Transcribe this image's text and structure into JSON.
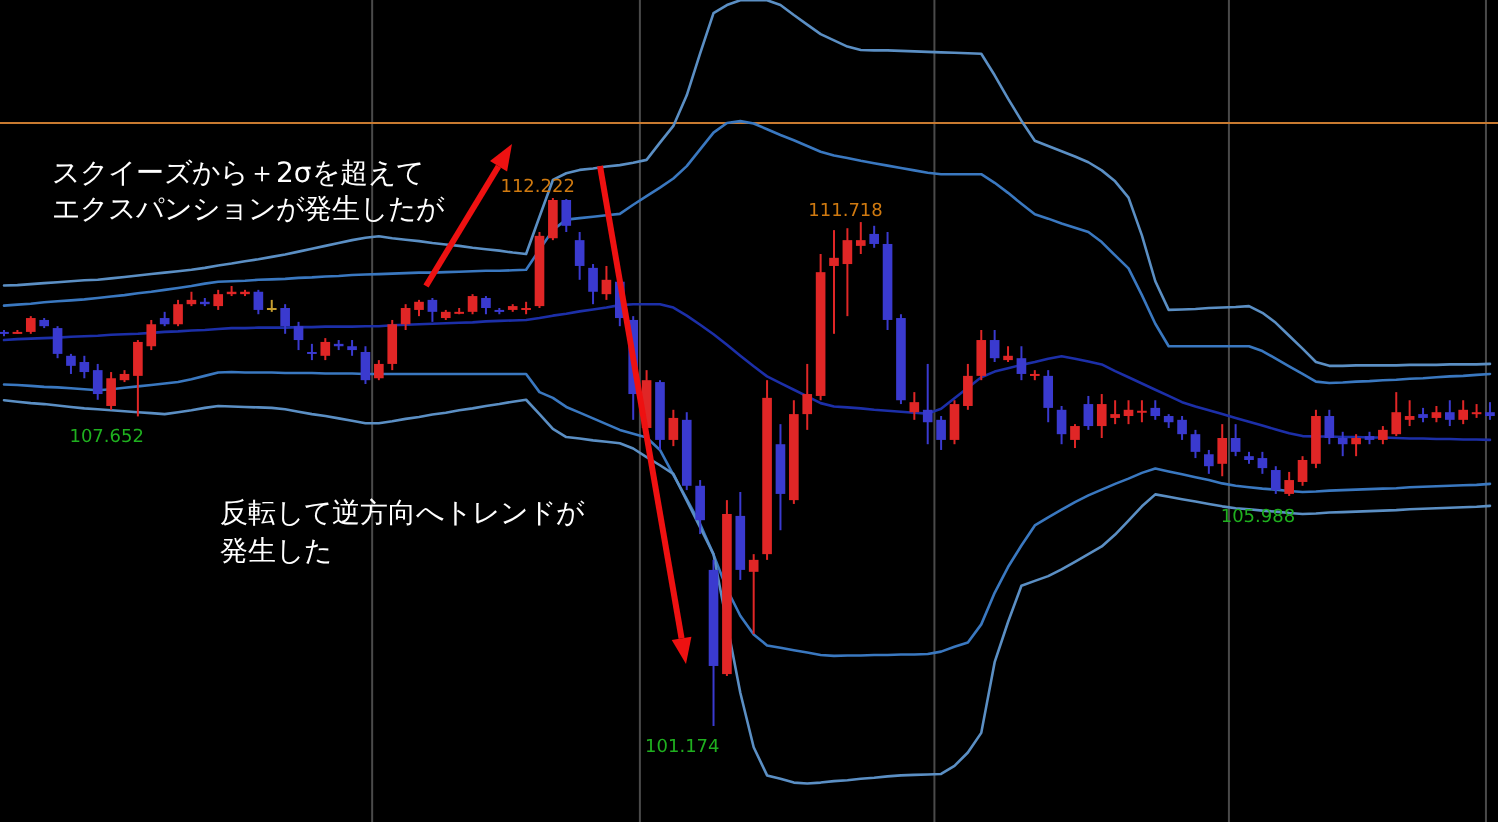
{
  "chart_data": {
    "type": "candlestick",
    "categories": [
      null,
      null,
      null,
      null,
      null,
      null,
      null,
      null,
      null,
      null,
      null,
      null,
      null,
      null,
      null,
      null,
      null,
      null,
      null,
      null,
      null,
      null,
      null,
      null,
      null,
      null,
      null,
      null,
      null,
      null,
      null,
      null,
      null,
      null,
      null,
      null,
      null,
      null,
      null,
      null,
      null,
      null,
      null,
      null,
      null,
      null,
      null,
      null,
      null,
      null,
      null,
      null,
      null,
      null,
      null,
      null,
      null,
      null,
      null,
      null,
      null,
      null,
      null,
      null,
      null,
      null,
      null,
      null,
      null,
      null,
      null,
      null,
      null,
      null,
      null,
      null,
      null,
      null,
      null,
      null,
      null,
      null,
      null,
      null,
      null,
      null,
      null,
      null,
      null,
      null,
      null,
      null,
      null,
      null,
      null,
      null,
      null,
      null,
      null,
      null,
      null,
      null,
      null,
      null,
      null,
      null,
      null,
      null,
      null,
      null,
      null,
      null
    ],
    "ohlc": [
      [
        109.42,
        109.46,
        109.33,
        109.38
      ],
      [
        109.4,
        109.46,
        109.38,
        109.42
      ],
      [
        109.42,
        109.75,
        109.38,
        109.71
      ],
      [
        109.67,
        109.71,
        109.5,
        109.54
      ],
      [
        109.5,
        109.54,
        108.87,
        108.96
      ],
      [
        108.92,
        108.96,
        108.54,
        108.71
      ],
      [
        108.79,
        108.92,
        108.45,
        108.58
      ],
      [
        108.62,
        108.75,
        108.0,
        108.12
      ],
      [
        107.87,
        108.58,
        107.79,
        108.45
      ],
      [
        108.41,
        108.62,
        108.37,
        108.54
      ],
      [
        108.5,
        109.25,
        107.652,
        109.21
      ],
      [
        109.12,
        109.67,
        109.04,
        109.58
      ],
      [
        109.71,
        109.84,
        109.54,
        109.58
      ],
      [
        109.58,
        110.09,
        109.54,
        110.0
      ],
      [
        110.0,
        110.26,
        109.96,
        110.09
      ],
      [
        110.05,
        110.13,
        109.96,
        110.0
      ],
      [
        109.96,
        110.3,
        109.88,
        110.21
      ],
      [
        110.21,
        110.38,
        110.17,
        110.26
      ],
      [
        110.21,
        110.3,
        110.17,
        110.26
      ],
      [
        110.26,
        110.3,
        109.79,
        109.88
      ],
      [
        109.92,
        110.09,
        109.84,
        109.92
      ],
      [
        109.92,
        110.0,
        109.38,
        109.54
      ],
      [
        109.54,
        109.63,
        109.04,
        109.25
      ],
      [
        109.0,
        109.17,
        108.83,
        108.96
      ],
      [
        108.92,
        109.29,
        108.83,
        109.21
      ],
      [
        109.17,
        109.25,
        109.04,
        109.12
      ],
      [
        109.12,
        109.25,
        108.92,
        109.04
      ],
      [
        109.0,
        109.12,
        108.33,
        108.41
      ],
      [
        108.45,
        108.83,
        108.41,
        108.75
      ],
      [
        108.75,
        109.67,
        108.62,
        109.58
      ],
      [
        109.58,
        110.0,
        109.46,
        109.92
      ],
      [
        109.88,
        110.09,
        109.75,
        110.05
      ],
      [
        110.09,
        110.13,
        109.63,
        109.84
      ],
      [
        109.71,
        109.88,
        109.67,
        109.84
      ],
      [
        109.82,
        109.92,
        109.79,
        109.84
      ],
      [
        109.84,
        110.21,
        109.79,
        110.17
      ],
      [
        110.13,
        110.17,
        109.79,
        109.92
      ],
      [
        109.88,
        109.92,
        109.79,
        109.84
      ],
      [
        109.88,
        110.0,
        109.84,
        109.96
      ],
      [
        109.88,
        110.05,
        109.79,
        109.92
      ],
      [
        109.96,
        111.51,
        109.92,
        111.43
      ],
      [
        111.38,
        112.222,
        111.34,
        112.18
      ],
      [
        112.18,
        112.2,
        111.51,
        111.64
      ],
      [
        111.34,
        111.51,
        110.51,
        110.8
      ],
      [
        110.76,
        110.84,
        110.0,
        110.26
      ],
      [
        110.21,
        110.8,
        110.09,
        110.51
      ],
      [
        110.47,
        110.51,
        109.54,
        109.71
      ],
      [
        109.67,
        109.75,
        107.58,
        108.12
      ],
      [
        107.41,
        108.62,
        107.16,
        108.41
      ],
      [
        108.37,
        108.41,
        106.95,
        107.16
      ],
      [
        107.16,
        107.79,
        107.03,
        107.62
      ],
      [
        107.58,
        107.74,
        106.11,
        106.2
      ],
      [
        106.2,
        106.32,
        105.19,
        105.48
      ],
      [
        104.44,
        104.65,
        101.174,
        102.43
      ],
      [
        102.26,
        105.9,
        102.22,
        105.61
      ],
      [
        105.57,
        106.07,
        104.23,
        104.44
      ],
      [
        104.4,
        104.77,
        103.1,
        104.65
      ],
      [
        104.77,
        108.41,
        104.65,
        108.04
      ],
      [
        107.07,
        107.49,
        105.27,
        106.03
      ],
      [
        105.9,
        107.99,
        105.82,
        107.7
      ],
      [
        107.7,
        108.75,
        107.37,
        108.12
      ],
      [
        108.08,
        111.05,
        107.99,
        110.67
      ],
      [
        110.8,
        111.55,
        109.38,
        110.97
      ],
      [
        110.84,
        111.59,
        109.75,
        111.34
      ],
      [
        111.22,
        111.718,
        111.05,
        111.34
      ],
      [
        111.47,
        111.64,
        111.18,
        111.26
      ],
      [
        111.26,
        111.51,
        109.46,
        109.67
      ],
      [
        109.71,
        109.79,
        107.91,
        107.99
      ],
      [
        107.74,
        108.16,
        107.58,
        107.95
      ],
      [
        107.79,
        108.75,
        107.07,
        107.53
      ],
      [
        107.58,
        107.66,
        106.95,
        107.16
      ],
      [
        107.16,
        107.99,
        107.07,
        107.91
      ],
      [
        107.87,
        108.75,
        107.79,
        108.5
      ],
      [
        108.5,
        109.46,
        108.41,
        109.25
      ],
      [
        109.25,
        109.46,
        108.79,
        108.87
      ],
      [
        108.83,
        109.12,
        108.79,
        108.92
      ],
      [
        108.87,
        109.12,
        108.41,
        108.54
      ],
      [
        108.5,
        108.62,
        108.41,
        108.54
      ],
      [
        108.5,
        108.62,
        107.53,
        107.83
      ],
      [
        107.79,
        107.87,
        107.07,
        107.28
      ],
      [
        107.16,
        107.49,
        106.99,
        107.45
      ],
      [
        107.91,
        108.08,
        107.37,
        107.45
      ],
      [
        107.45,
        108.12,
        107.2,
        107.91
      ],
      [
        107.62,
        107.99,
        107.49,
        107.7
      ],
      [
        107.66,
        107.99,
        107.49,
        107.79
      ],
      [
        107.74,
        107.99,
        107.53,
        107.77
      ],
      [
        107.83,
        107.99,
        107.58,
        107.66
      ],
      [
        107.66,
        107.7,
        107.41,
        107.53
      ],
      [
        107.58,
        107.66,
        107.16,
        107.28
      ],
      [
        107.28,
        107.37,
        106.78,
        106.91
      ],
      [
        106.86,
        106.95,
        106.45,
        106.61
      ],
      [
        106.66,
        107.49,
        106.4,
        107.2
      ],
      [
        107.2,
        107.49,
        106.82,
        106.91
      ],
      [
        106.82,
        106.91,
        106.66,
        106.74
      ],
      [
        106.78,
        106.91,
        106.45,
        106.57
      ],
      [
        106.53,
        106.61,
        106.03,
        106.11
      ],
      [
        106.03,
        106.49,
        105.988,
        106.32
      ],
      [
        106.28,
        106.82,
        106.2,
        106.74
      ],
      [
        106.66,
        107.79,
        106.57,
        107.66
      ],
      [
        107.66,
        107.79,
        107.07,
        107.2
      ],
      [
        107.2,
        107.33,
        106.82,
        107.07
      ],
      [
        107.07,
        107.28,
        106.82,
        107.2
      ],
      [
        107.24,
        107.33,
        107.07,
        107.16
      ],
      [
        107.16,
        107.45,
        107.07,
        107.37
      ],
      [
        107.28,
        108.16,
        107.24,
        107.74
      ],
      [
        107.58,
        107.99,
        107.45,
        107.66
      ],
      [
        107.7,
        107.83,
        107.53,
        107.62
      ],
      [
        107.62,
        107.87,
        107.53,
        107.74
      ],
      [
        107.74,
        107.99,
        107.45,
        107.58
      ],
      [
        107.58,
        107.99,
        107.49,
        107.79
      ],
      [
        107.7,
        107.91,
        107.62,
        107.74
      ],
      [
        107.74,
        107.95,
        107.58,
        107.66
      ]
    ],
    "colors": [
      "#3a3acf",
      "#e02626",
      "#e02626",
      "#3a3acf",
      "#3a3acf",
      "#3a3acf",
      "#3a3acf",
      "#3a3acf",
      "#e02626",
      "#e02626",
      "#e02626",
      "#e02626",
      "#3a3acf",
      "#e02626",
      "#e02626",
      "#3a3acf",
      "#e02626",
      "#e02626",
      "#e02626",
      "#3a3acf",
      "#c8a030",
      "#3a3acf",
      "#3a3acf",
      "#3a3acf",
      "#e02626",
      "#3a3acf",
      "#3a3acf",
      "#3a3acf",
      "#e02626",
      "#e02626",
      "#e02626",
      "#e02626",
      "#3a3acf",
      "#e02626",
      "#e02626",
      "#e02626",
      "#3a3acf",
      "#3a3acf",
      "#e02626",
      "#e02626",
      "#e02626",
      "#e02626",
      "#3a3acf",
      "#3a3acf",
      "#3a3acf",
      "#e02626",
      "#3a3acf",
      "#3a3acf",
      "#e02626",
      "#3a3acf",
      "#e02626",
      "#3a3acf",
      "#3a3acf",
      "#3a3acf",
      "#e02626",
      "#3a3acf",
      "#e02626",
      "#e02626",
      "#3a3acf",
      "#e02626",
      "#e02626",
      "#e02626",
      "#e02626",
      "#e02626",
      "#e02626",
      "#3a3acf",
      "#3a3acf",
      "#3a3acf",
      "#e02626",
      "#3a3acf",
      "#3a3acf",
      "#e02626",
      "#e02626",
      "#e02626",
      "#3a3acf",
      "#e02626",
      "#3a3acf",
      "#e02626",
      "#3a3acf",
      "#3a3acf",
      "#e02626",
      "#3a3acf",
      "#e02626",
      "#e02626",
      "#e02626",
      "#e02626",
      "#3a3acf",
      "#3a3acf",
      "#3a3acf",
      "#3a3acf",
      "#3a3acf",
      "#e02626",
      "#3a3acf",
      "#3a3acf",
      "#3a3acf",
      "#3a3acf",
      "#e02626",
      "#e02626",
      "#e02626",
      "#3a3acf",
      "#3a3acf",
      "#e02626",
      "#3a3acf",
      "#e02626",
      "#e02626",
      "#e02626",
      "#3a3acf",
      "#e02626",
      "#3a3acf",
      "#e02626",
      "#e02626",
      "#3a3acf"
    ],
    "series": [
      {
        "type": "line",
        "color": "#5b8fc4",
        "values": [
          110.39,
          110.4,
          110.42,
          110.44,
          110.46,
          110.48,
          110.5,
          110.51,
          110.54,
          110.57,
          110.6,
          110.63,
          110.66,
          110.69,
          110.72,
          110.76,
          110.81,
          110.85,
          110.9,
          110.94,
          110.99,
          111.04,
          111.1,
          111.16,
          111.22,
          111.28,
          111.34,
          111.39,
          111.42,
          111.38,
          111.35,
          111.32,
          111.28,
          111.25,
          111.22,
          111.18,
          111.15,
          111.12,
          111.08,
          111.05,
          111.83,
          112.6,
          112.74,
          112.81,
          112.84,
          112.88,
          112.91,
          112.96,
          113.02,
          113.38,
          113.73,
          114.37,
          115.25,
          116.09,
          116.26,
          116.36,
          116.36,
          116.36,
          116.26,
          116.05,
          115.85,
          115.65,
          115.52,
          115.39,
          115.32,
          115.31,
          115.31,
          115.3,
          115.29,
          115.28,
          115.27,
          115.26,
          115.25,
          115.24,
          114.79,
          114.3,
          113.84,
          113.42,
          113.31,
          113.2,
          113.09,
          112.97,
          112.8,
          112.57,
          112.23,
          111.44,
          110.48,
          109.88,
          109.89,
          109.9,
          109.92,
          109.93,
          109.94,
          109.96,
          109.82,
          109.61,
          109.34,
          109.07,
          108.79,
          108.71,
          108.71,
          108.72,
          108.72,
          108.72,
          108.72,
          108.73,
          108.73,
          108.73,
          108.74,
          108.74,
          108.74,
          108.75
        ]
      },
      {
        "type": "line",
        "color": "#3a78c0",
        "values": [
          109.97,
          109.99,
          110.01,
          110.04,
          110.06,
          110.08,
          110.1,
          110.13,
          110.16,
          110.19,
          110.23,
          110.26,
          110.3,
          110.34,
          110.38,
          110.43,
          110.47,
          110.48,
          110.49,
          110.51,
          110.52,
          110.53,
          110.55,
          110.56,
          110.58,
          110.59,
          110.61,
          110.62,
          110.63,
          110.64,
          110.65,
          110.66,
          110.66,
          110.67,
          110.68,
          110.69,
          110.7,
          110.7,
          110.71,
          110.72,
          111.14,
          111.55,
          111.77,
          111.8,
          111.83,
          111.86,
          111.89,
          112.08,
          112.26,
          112.44,
          112.63,
          112.89,
          113.24,
          113.59,
          113.79,
          113.83,
          113.78,
          113.66,
          113.54,
          113.43,
          113.31,
          113.19,
          113.11,
          113.06,
          113.0,
          112.95,
          112.9,
          112.85,
          112.8,
          112.75,
          112.72,
          112.72,
          112.72,
          112.72,
          112.54,
          112.33,
          112.1,
          111.88,
          111.79,
          111.69,
          111.6,
          111.51,
          111.3,
          111.02,
          110.75,
          110.19,
          109.59,
          109.12,
          109.12,
          109.12,
          109.12,
          109.12,
          109.12,
          109.12,
          109.02,
          108.86,
          108.7,
          108.54,
          108.38,
          108.35,
          108.36,
          108.38,
          108.39,
          108.41,
          108.42,
          108.44,
          108.45,
          108.47,
          108.49,
          108.5,
          108.52,
          108.54
        ]
      },
      {
        "type": "line",
        "color": "#1c2fa8",
        "values": [
          109.25,
          109.27,
          109.28,
          109.29,
          109.3,
          109.32,
          109.33,
          109.34,
          109.36,
          109.37,
          109.38,
          109.4,
          109.42,
          109.43,
          109.45,
          109.46,
          109.48,
          109.5,
          109.5,
          109.51,
          109.51,
          109.51,
          109.52,
          109.52,
          109.53,
          109.53,
          109.53,
          109.54,
          109.54,
          109.56,
          109.57,
          109.58,
          109.59,
          109.6,
          109.61,
          109.62,
          109.64,
          109.65,
          109.66,
          109.67,
          109.71,
          109.76,
          109.8,
          109.85,
          109.89,
          109.93,
          109.98,
          110.0,
          110.0,
          110.0,
          109.93,
          109.76,
          109.57,
          109.37,
          109.15,
          108.92,
          108.7,
          108.49,
          108.35,
          108.21,
          108.07,
          107.93,
          107.86,
          107.84,
          107.82,
          107.79,
          107.77,
          107.75,
          107.73,
          107.71,
          107.81,
          108.03,
          108.25,
          108.47,
          108.59,
          108.66,
          108.73,
          108.79,
          108.86,
          108.91,
          108.86,
          108.8,
          108.74,
          108.6,
          108.47,
          108.34,
          108.21,
          108.08,
          107.95,
          107.86,
          107.78,
          107.7,
          107.62,
          107.54,
          107.46,
          107.38,
          107.3,
          107.24,
          107.23,
          107.23,
          107.22,
          107.22,
          107.21,
          107.21,
          107.2,
          107.19,
          107.19,
          107.18,
          107.18,
          107.17,
          107.17,
          107.16
        ]
      },
      {
        "type": "line",
        "color": "#3a78c0",
        "values": [
          108.32,
          108.31,
          108.29,
          108.27,
          108.26,
          108.24,
          108.22,
          108.2,
          108.22,
          108.25,
          108.28,
          108.31,
          108.34,
          108.37,
          108.43,
          108.5,
          108.57,
          108.58,
          108.57,
          108.57,
          108.57,
          108.56,
          108.56,
          108.56,
          108.55,
          108.55,
          108.55,
          108.54,
          108.54,
          108.54,
          108.54,
          108.54,
          108.54,
          108.54,
          108.54,
          108.54,
          108.54,
          108.54,
          108.54,
          108.54,
          108.16,
          108.04,
          107.85,
          107.73,
          107.61,
          107.49,
          107.37,
          107.29,
          107.21,
          106.95,
          106.43,
          105.92,
          105.4,
          104.76,
          104.04,
          103.48,
          103.09,
          102.86,
          102.81,
          102.76,
          102.71,
          102.66,
          102.64,
          102.65,
          102.65,
          102.66,
          102.66,
          102.67,
          102.67,
          102.68,
          102.73,
          102.83,
          102.92,
          103.3,
          103.96,
          104.5,
          104.95,
          105.37,
          105.54,
          105.7,
          105.86,
          106.0,
          106.12,
          106.24,
          106.35,
          106.47,
          106.56,
          106.5,
          106.44,
          106.38,
          106.32,
          106.25,
          106.2,
          106.17,
          106.14,
          106.12,
          106.09,
          106.07,
          106.08,
          106.1,
          106.11,
          106.12,
          106.13,
          106.14,
          106.15,
          106.17,
          106.18,
          106.19,
          106.2,
          106.21,
          106.22,
          106.24
        ]
      },
      {
        "type": "line",
        "color": "#5b8fc4",
        "values": [
          107.99,
          107.96,
          107.93,
          107.91,
          107.88,
          107.85,
          107.82,
          107.8,
          107.78,
          107.76,
          107.74,
          107.72,
          107.7,
          107.74,
          107.78,
          107.83,
          107.87,
          107.86,
          107.85,
          107.84,
          107.83,
          107.8,
          107.75,
          107.7,
          107.66,
          107.61,
          107.56,
          107.51,
          107.51,
          107.55,
          107.6,
          107.64,
          107.69,
          107.73,
          107.78,
          107.82,
          107.87,
          107.91,
          107.96,
          108.0,
          107.7,
          107.39,
          107.22,
          107.19,
          107.15,
          107.12,
          107.09,
          106.98,
          106.8,
          106.63,
          106.45,
          105.89,
          105.33,
          104.77,
          null,
          101.87,
          100.73,
          100.14,
          100.07,
          99.99,
          99.97,
          99.99,
          100.02,
          100.04,
          100.07,
          100.09,
          100.12,
          100.14,
          100.15,
          100.16,
          100.17,
          100.34,
          100.62,
          101.03,
          102.51,
          103.35,
          104.11,
          104.21,
          104.31,
          104.45,
          104.61,
          104.77,
          104.93,
          105.18,
          105.47,
          105.77,
          106.02,
          105.97,
          105.92,
          105.87,
          105.82,
          105.77,
          105.73,
          105.71,
          105.68,
          105.66,
          105.63,
          105.61,
          105.62,
          105.64,
          105.65,
          105.66,
          105.67,
          105.68,
          105.69,
          105.71,
          105.72,
          105.73,
          105.74,
          105.75,
          105.76,
          105.78
        ]
      }
    ],
    "ylim": [
      99.165,
      116.365
    ],
    "ref_lines": [
      {
        "axis": "y",
        "value": 113.79,
        "color": "#c87a30"
      }
    ],
    "annotations": [
      "スクイーズから＋2σを超えてエクスパンションが発生したが",
      "反転して逆方向へトレンドが発生した",
      "112.222",
      "111.718",
      "107.652",
      "101.174",
      "105.988"
    ]
  }
}
